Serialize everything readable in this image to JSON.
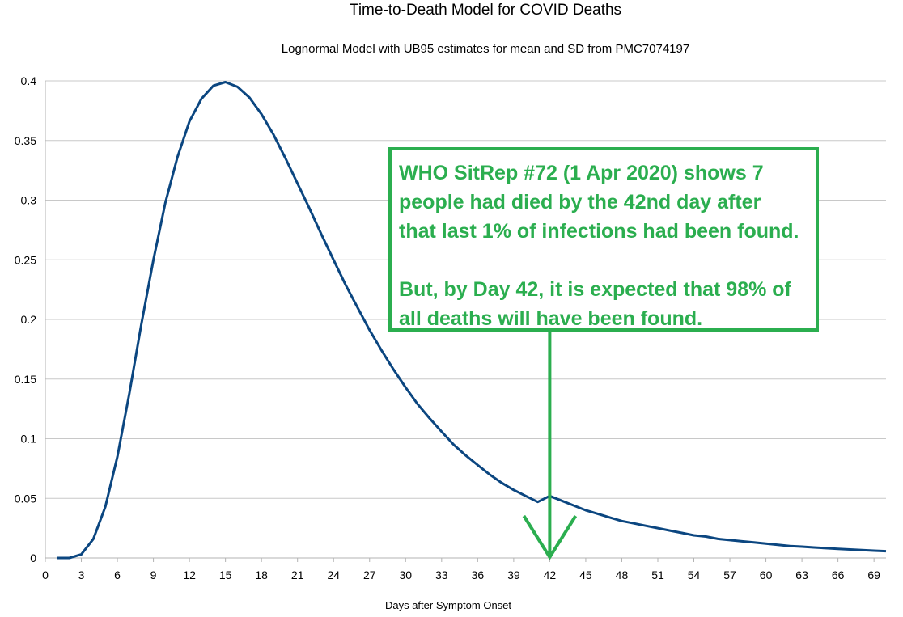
{
  "chart_data": {
    "type": "line",
    "title": "Time-to-Death Model for COVID Deaths",
    "subtitle": "Lognormal Model with UB95 estimates for mean and SD from PMC7074197",
    "xlabel": "Days after Symptom Onset",
    "ylabel": "",
    "xlim": [
      0,
      70
    ],
    "ylim": [
      0,
      0.4
    ],
    "x_ticks": [
      "0",
      "3",
      "6",
      "9",
      "12",
      "15",
      "18",
      "21",
      "24",
      "27",
      "30",
      "33",
      "36",
      "39",
      "42",
      "45",
      "48",
      "51",
      "54",
      "57",
      "60",
      "63",
      "66",
      "69"
    ],
    "y_ticks": [
      "0",
      "0.05",
      "0.1",
      "0.15",
      "0.2",
      "0.25",
      "0.3",
      "0.35",
      "0.4"
    ],
    "grid": true,
    "legend": "none",
    "series": [
      {
        "color": "#0b4680",
        "x": [
          1,
          2,
          3,
          4,
          5,
          6,
          7,
          8,
          9,
          10,
          11,
          12,
          13,
          14,
          15,
          16,
          17,
          18,
          19,
          20,
          21,
          22,
          23,
          24,
          25,
          26,
          27,
          28,
          29,
          30,
          31,
          32,
          33,
          34,
          35,
          36,
          37,
          38,
          39,
          40,
          41,
          42,
          43,
          44,
          45,
          46,
          47,
          48,
          49,
          50,
          51,
          52,
          53,
          54,
          55,
          56,
          57,
          58,
          59,
          60,
          61,
          62,
          63,
          64,
          65,
          66,
          67,
          68,
          69,
          70
        ],
        "values": [
          0.0,
          0.0,
          0.003,
          0.016,
          0.043,
          0.085,
          0.138,
          0.196,
          0.25,
          0.298,
          0.336,
          0.366,
          0.385,
          0.396,
          0.399,
          0.395,
          0.386,
          0.372,
          0.355,
          0.335,
          0.314,
          0.293,
          0.271,
          0.25,
          0.229,
          0.21,
          0.191,
          0.174,
          0.158,
          0.143,
          0.129,
          0.117,
          0.106,
          0.095,
          0.086,
          0.078,
          0.07,
          0.063,
          0.057,
          0.052,
          0.047,
          0.052,
          0.048,
          0.044,
          0.04,
          0.037,
          0.034,
          0.031,
          0.029,
          0.027,
          0.025,
          0.023,
          0.021,
          0.019,
          0.018,
          0.016,
          0.015,
          0.014,
          0.013,
          0.012,
          0.011,
          0.01,
          0.0095,
          0.0088,
          0.0082,
          0.0076,
          0.0071,
          0.0066,
          0.0061,
          0.0057
        ]
      }
    ],
    "annotation": {
      "lines": [
        "WHO SitRep #72 (1 Apr 2020) shows 7",
        "people had died by the 42nd day after",
        "that last 1% of infections had been found.",
        "",
        "But, by Day 42, it is expected that 98% of",
        "all deaths will have been found."
      ],
      "arrow_x": 42,
      "color": "#2bae4f"
    }
  }
}
